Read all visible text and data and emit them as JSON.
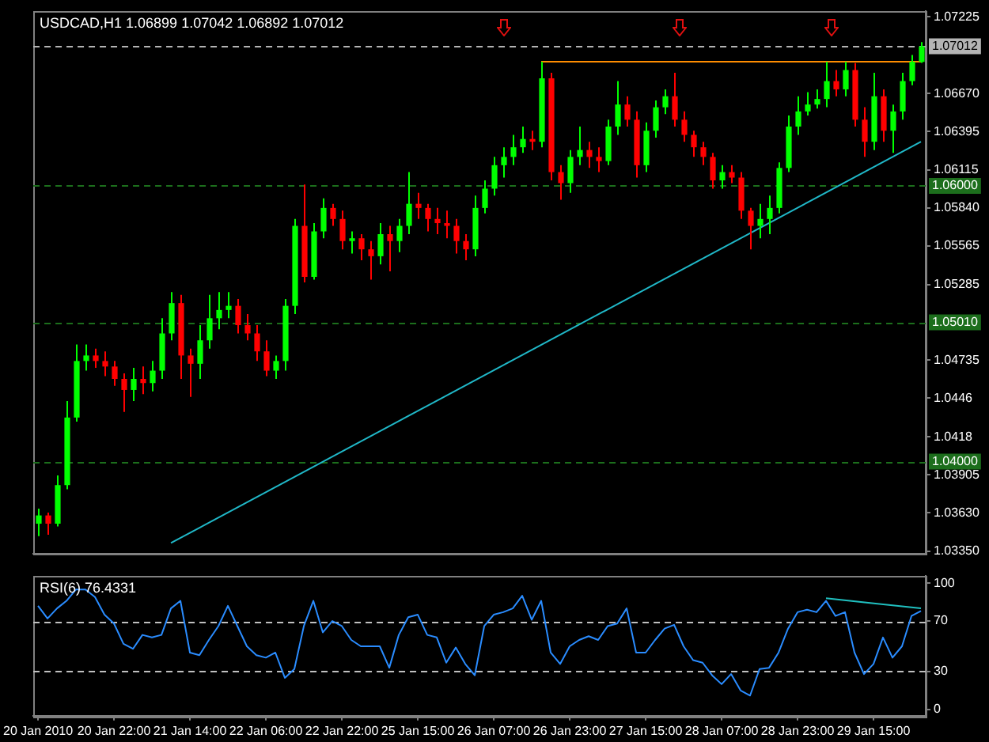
{
  "chart_data": [
    {
      "type": "candlestick",
      "title": "USDCAD,H1 1.06899 1.07042 1.06892 1.07012",
      "categories": [
        null,
        null,
        null,
        null,
        null,
        null,
        null,
        null,
        null,
        null,
        null,
        null,
        null,
        null,
        null,
        null,
        null,
        null,
        null,
        null,
        null,
        null,
        null,
        null,
        null,
        null,
        null,
        null,
        null,
        null,
        null,
        null,
        null,
        null,
        null,
        null,
        null,
        null,
        null,
        null,
        null,
        null,
        null,
        null,
        null,
        null,
        null,
        null,
        null,
        null,
        null,
        null,
        null,
        null,
        null,
        null,
        null,
        null,
        null,
        null,
        null,
        null,
        null,
        null,
        null,
        null,
        null,
        null,
        null,
        null,
        null,
        null,
        null,
        null,
        null,
        null,
        null,
        null,
        null,
        null,
        null,
        null,
        null,
        null,
        null,
        null,
        null,
        null,
        null,
        null,
        null,
        null,
        null,
        null
      ],
      "ohlc": [
        [
          1.0355,
          1.0366,
          1.0346,
          1.0361
        ],
        [
          1.0361,
          1.0363,
          1.0347,
          1.0355
        ],
        [
          1.0355,
          1.039,
          1.0353,
          1.0383
        ],
        [
          1.0383,
          1.0444,
          1.038,
          1.0432
        ],
        [
          1.0432,
          1.0485,
          1.0429,
          1.0473
        ],
        [
          1.0473,
          1.0485,
          1.0466,
          1.0477
        ],
        [
          1.0477,
          1.0482,
          1.0468,
          1.0473
        ],
        [
          1.0473,
          1.048,
          1.0462,
          1.0469
        ],
        [
          1.0469,
          1.0473,
          1.0455,
          1.046
        ],
        [
          1.046,
          1.0464,
          1.0436,
          1.0452
        ],
        [
          1.0452,
          1.0468,
          1.0444,
          1.046
        ],
        [
          1.046,
          1.0469,
          1.0449,
          1.0457
        ],
        [
          1.0457,
          1.0473,
          1.0451,
          1.0466
        ],
        [
          1.0466,
          1.0504,
          1.046,
          1.0493
        ],
        [
          1.0493,
          1.0523,
          1.0488,
          1.0515
        ],
        [
          1.0515,
          1.0521,
          1.046,
          1.0477
        ],
        [
          1.0477,
          1.0482,
          1.0447,
          1.0471
        ],
        [
          1.0471,
          1.0499,
          1.046,
          1.0488
        ],
        [
          1.0488,
          1.0521,
          1.0482,
          1.0504
        ],
        [
          1.0504,
          1.0523,
          1.0496,
          1.051
        ],
        [
          1.051,
          1.0523,
          1.0504,
          1.0513
        ],
        [
          1.0513,
          1.0518,
          1.0493,
          1.0499
        ],
        [
          1.0499,
          1.0507,
          1.0488,
          1.0493
        ],
        [
          1.0493,
          1.0499,
          1.0473,
          1.048
        ],
        [
          1.048,
          1.0488,
          1.0462,
          1.0466
        ],
        [
          1.0466,
          1.0477,
          1.046,
          1.0473
        ],
        [
          1.0473,
          1.0518,
          1.0466,
          1.0513
        ],
        [
          1.0513,
          1.0576,
          1.0507,
          1.0571
        ],
        [
          1.0571,
          1.0601,
          1.053,
          1.0534
        ],
        [
          1.0534,
          1.0573,
          1.0532,
          1.0567
        ],
        [
          1.0567,
          1.0591,
          1.0562,
          1.0584
        ],
        [
          1.0584,
          1.0587,
          1.0571,
          1.0576
        ],
        [
          1.0576,
          1.0582,
          1.0554,
          1.056
        ],
        [
          1.056,
          1.0567,
          1.0551,
          1.0562
        ],
        [
          1.0562,
          1.0565,
          1.0546,
          1.0554
        ],
        [
          1.0554,
          1.056,
          1.0532,
          1.0549
        ],
        [
          1.0549,
          1.0573,
          1.0543,
          1.0565
        ],
        [
          1.0565,
          1.0571,
          1.0538,
          1.056
        ],
        [
          1.056,
          1.0576,
          1.0552,
          1.0571
        ],
        [
          1.0571,
          1.061,
          1.0565,
          1.0587
        ],
        [
          1.0587,
          1.0595,
          1.0576,
          1.0584
        ],
        [
          1.0584,
          1.0587,
          1.0567,
          1.0576
        ],
        [
          1.0576,
          1.0584,
          1.0565,
          1.0573
        ],
        [
          1.0573,
          1.0582,
          1.0562,
          1.0571
        ],
        [
          1.0571,
          1.0576,
          1.0551,
          1.056
        ],
        [
          1.056,
          1.0565,
          1.0546,
          1.0554
        ],
        [
          1.0554,
          1.0593,
          1.0549,
          1.0584
        ],
        [
          1.0584,
          1.0604,
          1.058,
          1.0598
        ],
        [
          1.0598,
          1.0621,
          1.0593,
          1.0615
        ],
        [
          1.0615,
          1.0628,
          1.0606,
          1.0621
        ],
        [
          1.0621,
          1.0637,
          1.0615,
          1.0628
        ],
        [
          1.0628,
          1.0643,
          1.0624,
          1.0634
        ],
        [
          1.0634,
          1.064,
          1.0626,
          1.0632
        ],
        [
          1.0632,
          1.069,
          1.0628,
          1.0678
        ],
        [
          1.0678,
          1.0682,
          1.0604,
          1.061
        ],
        [
          1.061,
          1.0615,
          1.059,
          1.0602
        ],
        [
          1.0602,
          1.0626,
          1.0595,
          1.0621
        ],
        [
          1.0621,
          1.0643,
          1.0615,
          1.0626
        ],
        [
          1.0626,
          1.0632,
          1.0613,
          1.0621
        ],
        [
          1.0621,
          1.0628,
          1.061,
          1.0618
        ],
        [
          1.0618,
          1.0648,
          1.0615,
          1.0643
        ],
        [
          1.0643,
          1.0676,
          1.0637,
          1.0659
        ],
        [
          1.0659,
          1.0665,
          1.0643,
          1.0648
        ],
        [
          1.0648,
          1.0654,
          1.0606,
          1.0615
        ],
        [
          1.0615,
          1.0646,
          1.061,
          1.064
        ],
        [
          1.064,
          1.0662,
          1.0635,
          1.0657
        ],
        [
          1.0657,
          1.067,
          1.0652,
          1.0665
        ],
        [
          1.0665,
          1.0682,
          1.0643,
          1.0648
        ],
        [
          1.0648,
          1.0654,
          1.0632,
          1.0637
        ],
        [
          1.0637,
          1.064,
          1.0621,
          1.0628
        ],
        [
          1.0628,
          1.0632,
          1.0615,
          1.0621
        ],
        [
          1.0621,
          1.0624,
          1.0598,
          1.0604
        ],
        [
          1.0604,
          1.0615,
          1.0598,
          1.061
        ],
        [
          1.061,
          1.0615,
          1.0602,
          1.0606
        ],
        [
          1.0606,
          1.061,
          1.0576,
          1.0582
        ],
        [
          1.0582,
          1.0584,
          1.0554,
          1.0571
        ],
        [
          1.0571,
          1.0587,
          1.0562,
          1.0576
        ],
        [
          1.0576,
          1.0593,
          1.0565,
          1.0584
        ],
        [
          1.0584,
          1.0617,
          1.058,
          1.0613
        ],
        [
          1.0613,
          1.0651,
          1.061,
          1.0643
        ],
        [
          1.0643,
          1.0665,
          1.0637,
          1.0654
        ],
        [
          1.0654,
          1.0668,
          1.0651,
          1.0659
        ],
        [
          1.0659,
          1.067,
          1.0656,
          1.0663
        ],
        [
          1.0663,
          1.069,
          1.0657,
          1.0676
        ],
        [
          1.0676,
          1.0684,
          1.0665,
          1.067
        ],
        [
          1.067,
          1.069,
          1.0665,
          1.0684
        ],
        [
          1.0684,
          1.0689,
          1.0643,
          1.0648
        ],
        [
          1.0648,
          1.0657,
          1.0621,
          1.0632
        ],
        [
          1.0632,
          1.0682,
          1.0626,
          1.0665
        ],
        [
          1.0665,
          1.067,
          1.0632,
          1.064
        ],
        [
          1.064,
          1.0659,
          1.0624,
          1.0654
        ],
        [
          1.0654,
          1.0682,
          1.0648,
          1.0676
        ],
        [
          1.0676,
          1.0695,
          1.0673,
          1.069
        ],
        [
          1.06899,
          1.07042,
          1.06892,
          1.07012
        ]
      ],
      "colors": [
        "#00ff00",
        "#ff0000",
        "#00ff00",
        "#00ff00",
        "#00ff00",
        "#00ff00",
        "#ff0000",
        "#ff0000",
        "#ff0000",
        "#ff0000",
        "#00ff00",
        "#ff0000",
        "#00ff00",
        "#00ff00",
        "#00ff00",
        "#ff0000",
        "#ff0000",
        "#00ff00",
        "#00ff00",
        "#00ff00",
        "#00ff00",
        "#ff0000",
        "#ff0000",
        "#ff0000",
        "#ff0000",
        "#00ff00",
        "#00ff00",
        "#00ff00",
        "#ff0000",
        "#00ff00",
        "#00ff00",
        "#ff0000",
        "#ff0000",
        "#00ff00",
        "#ff0000",
        "#ff0000",
        "#00ff00",
        "#ff0000",
        "#00ff00",
        "#00ff00",
        "#ff0000",
        "#ff0000",
        "#ff0000",
        "#ff0000",
        "#ff0000",
        "#ff0000",
        "#00ff00",
        "#00ff00",
        "#00ff00",
        "#00ff00",
        "#00ff00",
        "#00ff00",
        "#ff0000",
        "#00ff00",
        "#ff0000",
        "#ff0000",
        "#00ff00",
        "#00ff00",
        "#ff0000",
        "#ff0000",
        "#00ff00",
        "#00ff00",
        "#ff0000",
        "#ff0000",
        "#00ff00",
        "#00ff00",
        "#00ff00",
        "#ff0000",
        "#ff0000",
        "#ff0000",
        "#ff0000",
        "#ff0000",
        "#00ff00",
        "#ff0000",
        "#ff0000",
        "#ff0000",
        "#00ff00",
        "#00ff00",
        "#00ff00",
        "#00ff00",
        "#00ff00",
        "#00ff00",
        "#00ff00",
        "#00ff00",
        "#ff0000",
        "#00ff00",
        "#ff0000",
        "#ff0000",
        "#00ff00",
        "#ff0000",
        "#00ff00",
        "#00ff00",
        "#00ff00",
        "#00ff00"
      ],
      "series": [
        {
          "type": "line",
          "color": "#ff8c00",
          "values": [
            null,
            null,
            null,
            null,
            null,
            null,
            null,
            null,
            null,
            null,
            null,
            null,
            null,
            null,
            null,
            null,
            null,
            null,
            null,
            null,
            null,
            null,
            null,
            null,
            null,
            null,
            null,
            null,
            null,
            null,
            null,
            null,
            null,
            null,
            null,
            null,
            null,
            null,
            null,
            null,
            null,
            null,
            null,
            null,
            null,
            null,
            null,
            null,
            null,
            null,
            null,
            null,
            null,
            1.069,
            null,
            null,
            null,
            null,
            null,
            null,
            null,
            null,
            null,
            null,
            null,
            null,
            null,
            null,
            null,
            null,
            null,
            null,
            null,
            null,
            null,
            null,
            null,
            null,
            null,
            null,
            null,
            null,
            null,
            null,
            null,
            null,
            null,
            null,
            null,
            null,
            null,
            null,
            null,
            1.069
          ]
        },
        {
          "type": "line",
          "color": "#20b8c8",
          "values": [
            null,
            null,
            null,
            null,
            null,
            null,
            null,
            null,
            null,
            null,
            null,
            null,
            null,
            null,
            1.0341,
            null,
            null,
            null,
            null,
            null,
            null,
            null,
            null,
            null,
            null,
            null,
            null,
            null,
            null,
            null,
            null,
            null,
            null,
            null,
            null,
            null,
            null,
            null,
            null,
            null,
            null,
            null,
            null,
            null,
            null,
            null,
            null,
            null,
            null,
            null,
            null,
            null,
            null,
            null,
            null,
            null,
            null,
            null,
            null,
            null,
            null,
            null,
            null,
            null,
            null,
            null,
            null,
            null,
            null,
            null,
            null,
            null,
            null,
            null,
            null,
            null,
            null,
            null,
            null,
            null,
            null,
            null,
            null,
            null,
            null,
            null,
            null,
            null,
            null,
            null,
            null,
            null,
            null,
            1.0632
          ]
        }
      ],
      "ylim": [
        1.0333,
        1.0727
      ],
      "yticks": [
        1.07225,
        {
          "value": 1.0667,
          "label": "1.06670"
        },
        1.06395,
        1.06115,
        {
          "value": 1.0584,
          "label": "1.05840"
        },
        1.05565,
        1.05285,
        1.04735,
        1.0446,
        1.0418,
        1.03905,
        {
          "value": 1.0363,
          "label": "1.03630"
        },
        {
          "value": 1.0335,
          "label": "1.03350"
        }
      ],
      "ref_lines": [
        {
          "axis": "y",
          "value": 1.07012,
          "label": "1.07012",
          "color": "#b4b4b4",
          "line_style": "dashed"
        },
        {
          "axis": "y",
          "value": 1.06,
          "label": "1.06000",
          "color": "#1c6e1c",
          "line_style": "dashed"
        },
        {
          "axis": "y",
          "value": 1.0501,
          "label": "1.05010",
          "color": "#1c6e1c",
          "line_style": "dashed"
        },
        {
          "axis": "y",
          "value": 1.04,
          "label": "1.04000",
          "color": "#1c6e1c",
          "line_style": "dashed"
        }
      ],
      "tick_labels": "y"
    },
    {
      "type": "line",
      "title": "RSI(6) 76.4331",
      "categories": [
        "20 Jan 2010",
        null,
        null,
        null,
        null,
        null,
        null,
        null,
        "20 Jan 22:00",
        null,
        null,
        null,
        null,
        null,
        null,
        null,
        "21 Jan 14:00",
        null,
        null,
        null,
        null,
        null,
        null,
        null,
        "22 Jan 06:00",
        null,
        null,
        null,
        null,
        null,
        null,
        null,
        "22 Jan 22:00",
        null,
        null,
        null,
        null,
        null,
        null,
        null,
        "25 Jan 15:00",
        null,
        null,
        null,
        null,
        null,
        null,
        null,
        "26 Jan 07:00",
        null,
        null,
        null,
        null,
        null,
        null,
        null,
        "26 Jan 23:00",
        null,
        null,
        null,
        null,
        null,
        null,
        null,
        "27 Jan 15:00",
        null,
        null,
        null,
        null,
        null,
        null,
        null,
        "28 Jan 07:00",
        null,
        null,
        null,
        null,
        null,
        null,
        null,
        "28 Jan 23:00",
        null,
        null,
        null,
        null,
        null,
        null,
        null,
        "29 Jan 15:00",
        null,
        null,
        null,
        null,
        null
      ],
      "series": [
        {
          "type": "line",
          "color": "#2a8cff",
          "values": [
            82,
            72,
            80,
            86,
            95,
            95,
            89,
            75,
            68,
            52,
            48,
            59,
            57,
            59,
            80,
            86,
            45,
            43,
            55,
            66,
            82,
            66,
            50,
            43,
            41,
            45,
            25,
            32,
            66,
            86,
            61,
            70,
            66,
            55,
            50,
            50,
            50,
            33,
            59,
            73,
            75,
            59,
            57,
            37,
            49,
            36,
            27,
            66,
            75,
            77,
            80,
            90,
            71,
            86,
            45,
            36,
            50,
            55,
            58,
            55,
            66,
            68,
            80,
            45,
            45,
            55,
            64,
            67,
            50,
            39,
            37,
            27,
            20,
            28,
            15,
            11,
            32,
            33,
            45,
            64,
            77,
            79,
            77,
            86,
            74,
            77,
            45,
            28,
            36,
            57,
            41,
            50,
            74,
            78
          ]
        },
        {
          "type": "line",
          "color": "#20c0c0",
          "values": [
            null,
            null,
            null,
            null,
            null,
            null,
            null,
            null,
            null,
            null,
            null,
            null,
            null,
            null,
            null,
            null,
            null,
            null,
            null,
            null,
            null,
            null,
            null,
            null,
            null,
            null,
            null,
            null,
            null,
            null,
            null,
            null,
            null,
            null,
            null,
            null,
            null,
            null,
            null,
            null,
            null,
            null,
            null,
            null,
            null,
            null,
            null,
            null,
            null,
            null,
            null,
            null,
            null,
            null,
            null,
            null,
            null,
            null,
            null,
            null,
            null,
            null,
            null,
            null,
            null,
            null,
            null,
            null,
            null,
            null,
            null,
            null,
            null,
            null,
            null,
            null,
            null,
            null,
            null,
            null,
            null,
            null,
            null,
            88,
            null,
            null,
            null,
            null,
            null,
            null,
            null,
            null,
            null,
            80
          ]
        }
      ],
      "ylim": [
        -5,
        106
      ],
      "yticks": [
        0,
        30,
        70,
        100
      ],
      "ref_lines": [
        {
          "axis": "y",
          "value": 70,
          "color": "#c0c0c0",
          "line_style": "dashed"
        },
        {
          "axis": "y",
          "value": 30,
          "color": "#c0c0c0",
          "line_style": "dashed"
        }
      ]
    }
  ]
}
